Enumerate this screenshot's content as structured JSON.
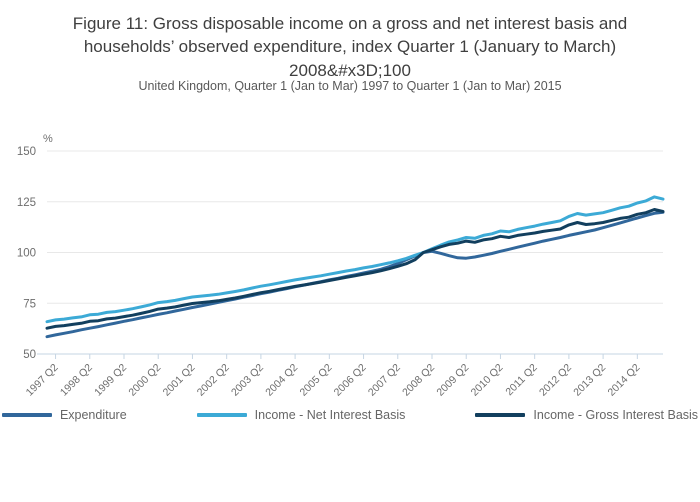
{
  "header": {
    "title": "Figure 11: Gross disposable income on a gross and net interest basis and households’ observed expenditure, index Quarter 1 (January to March) 2008&#x3D;100",
    "subtitle": "United Kingdom, Quarter 1 (Jan to Mar) 1997 to Quarter 1 (Jan to Mar) 2015"
  },
  "colors": {
    "background": "#ffffff",
    "grid_line": "#e8e8e8",
    "axis_line": "#c6d5e3",
    "tick_mark": "#c6d5e3",
    "tick_label": "#6e6e6e",
    "title_text": "#3f3f3f",
    "subtitle_text": "#595959",
    "legend_text": "#666666"
  },
  "chart_data": {
    "type": "line",
    "title": "Figure 11: Gross disposable income on a gross and net interest basis and households’ observed expenditure, index Quarter 1 (January to March) 2008&#x3D;100",
    "subtitle": "United Kingdom, Quarter 1 (Jan to Mar) 1997 to Quarter 1 (Jan to Mar) 2015",
    "xlabel": "",
    "ylabel": "%",
    "ylim": [
      50,
      150
    ],
    "yticks": [
      50,
      75,
      100,
      125,
      150
    ],
    "grid": "horizontal",
    "legend_position": "bottom",
    "x_tick_labels": [
      "1997 Q2",
      "1998 Q2",
      "1999 Q2",
      "2000 Q2",
      "2001 Q2",
      "2002 Q2",
      "2003 Q2",
      "2004 Q2",
      "2005 Q2",
      "2006 Q2",
      "2007 Q2",
      "2008 Q2",
      "2009 Q2",
      "2010 Q2",
      "2011 Q2",
      "2012 Q2",
      "2013 Q2",
      "2014 Q2"
    ],
    "x": [
      "1997 Q1",
      "1997 Q2",
      "1997 Q3",
      "1997 Q4",
      "1998 Q1",
      "1998 Q2",
      "1998 Q3",
      "1998 Q4",
      "1999 Q1",
      "1999 Q2",
      "1999 Q3",
      "1999 Q4",
      "2000 Q1",
      "2000 Q2",
      "2000 Q3",
      "2000 Q4",
      "2001 Q1",
      "2001 Q2",
      "2001 Q3",
      "2001 Q4",
      "2002 Q1",
      "2002 Q2",
      "2002 Q3",
      "2002 Q4",
      "2003 Q1",
      "2003 Q2",
      "2003 Q3",
      "2003 Q4",
      "2004 Q1",
      "2004 Q2",
      "2004 Q3",
      "2004 Q4",
      "2005 Q1",
      "2005 Q2",
      "2005 Q3",
      "2005 Q4",
      "2006 Q1",
      "2006 Q2",
      "2006 Q3",
      "2006 Q4",
      "2007 Q1",
      "2007 Q2",
      "2007 Q3",
      "2007 Q4",
      "2008 Q1",
      "2008 Q2",
      "2008 Q3",
      "2008 Q4",
      "2009 Q1",
      "2009 Q2",
      "2009 Q3",
      "2009 Q4",
      "2010 Q1",
      "2010 Q2",
      "2010 Q3",
      "2010 Q4",
      "2011 Q1",
      "2011 Q2",
      "2011 Q3",
      "2011 Q4",
      "2012 Q1",
      "2012 Q2",
      "2012 Q3",
      "2012 Q4",
      "2013 Q1",
      "2013 Q2",
      "2013 Q3",
      "2013 Q4",
      "2014 Q1",
      "2014 Q2",
      "2014 Q3",
      "2014 Q4",
      "2015 Q1"
    ],
    "series": [
      {
        "name": "Expenditure",
        "color": "#31679b",
        "values": [
          58.5,
          59.4,
          60.2,
          61.0,
          61.9,
          62.7,
          63.5,
          64.4,
          65.2,
          66.1,
          66.9,
          67.8,
          68.6,
          69.5,
          70.3,
          71.2,
          72.0,
          72.9,
          73.7,
          74.6,
          75.4,
          76.3,
          77.1,
          78.0,
          78.8,
          79.7,
          80.5,
          81.4,
          82.2,
          83.1,
          83.9,
          84.8,
          85.6,
          86.5,
          87.3,
          88.2,
          89.0,
          89.9,
          90.8,
          91.7,
          93.0,
          94.6,
          96.4,
          98.3,
          100.0,
          100.6,
          99.6,
          98.4,
          97.4,
          97.2,
          97.8,
          98.6,
          99.5,
          100.6,
          101.6,
          102.6,
          103.6,
          104.6,
          105.6,
          106.5,
          107.4,
          108.4,
          109.3,
          110.2,
          111.1,
          112.2,
          113.4,
          114.6,
          115.8,
          117.0,
          118.2,
          119.3,
          119.8
        ]
      },
      {
        "name": "Income - Net Interest Basis",
        "color": "#3caad6",
        "values": [
          65.9,
          66.8,
          67.2,
          67.8,
          68.3,
          69.3,
          69.6,
          70.5,
          70.9,
          71.6,
          72.3,
          73.2,
          74.2,
          75.3,
          75.8,
          76.4,
          77.3,
          78.1,
          78.5,
          78.9,
          79.4,
          80.1,
          80.8,
          81.6,
          82.5,
          83.4,
          84.1,
          84.9,
          85.7,
          86.5,
          87.2,
          87.9,
          88.5,
          89.3,
          90.1,
          90.9,
          91.6,
          92.4,
          93.1,
          94.0,
          94.9,
          95.9,
          97.1,
          98.6,
          100.0,
          101.8,
          103.6,
          105.2,
          106.2,
          107.4,
          107.0,
          108.4,
          109.2,
          110.6,
          110.2,
          111.4,
          112.2,
          113.0,
          114.0,
          114.8,
          115.6,
          117.8,
          119.2,
          118.4,
          119.0,
          119.6,
          120.8,
          122.0,
          122.8,
          124.4,
          125.4,
          127.4,
          126.3
        ]
      },
      {
        "name": "Income - Gross Interest Basis",
        "color": "#123f5e",
        "values": [
          62.7,
          63.6,
          64.0,
          64.6,
          65.1,
          66.1,
          66.4,
          67.3,
          67.7,
          68.4,
          69.1,
          70.0,
          71.0,
          72.1,
          72.6,
          73.2,
          74.1,
          74.9,
          75.3,
          75.7,
          76.2,
          76.9,
          77.6,
          78.4,
          79.3,
          80.2,
          80.9,
          81.7,
          82.5,
          83.3,
          84.0,
          84.7,
          85.4,
          86.2,
          87.0,
          87.8,
          88.5,
          89.3,
          90.1,
          91.0,
          92.0,
          93.2,
          94.5,
          96.4,
          100.0,
          101.4,
          102.8,
          104.0,
          104.6,
          105.6,
          105.0,
          106.2,
          106.8,
          108.0,
          107.4,
          108.4,
          109.0,
          109.6,
          110.4,
          111.0,
          111.6,
          113.6,
          114.8,
          113.8,
          114.2,
          114.8,
          115.8,
          116.8,
          117.4,
          118.8,
          119.6,
          121.2,
          120.2
        ]
      }
    ]
  }
}
